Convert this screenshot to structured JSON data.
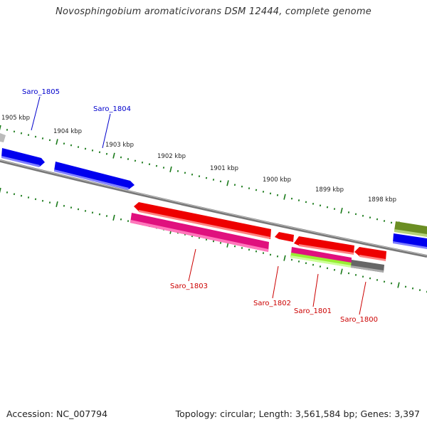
{
  "title": "Novosphingobium aromaticivorans DSM 12444, complete genome",
  "footer": {
    "accession": "Accession: NC_007794",
    "topology": "Topology: circular; Length: 3,561,584 bp; Genes: 3,397"
  },
  "scale_labels": [
    "1905 kbp",
    "1904 kbp",
    "1903 kbp",
    "1902 kbp",
    "1901 kbp",
    "1900 kbp",
    "1899 kbp",
    "1898 kbp"
  ],
  "genes": [
    {
      "name": "Saro_1805",
      "strand": "+",
      "color": "#0000cc"
    },
    {
      "name": "Saro_1804",
      "strand": "+",
      "color": "#0000cc"
    },
    {
      "name": "Saro_1803",
      "strand": "-",
      "color": "#cc0000"
    },
    {
      "name": "Saro_1802",
      "strand": "-",
      "color": "#cc0000"
    },
    {
      "name": "Saro_1801",
      "strand": "-",
      "color": "#cc0000"
    },
    {
      "name": "Saro_1800",
      "strand": "-",
      "color": "#cc0000"
    }
  ],
  "colors": {
    "plus_strand": "#0000ff",
    "minus_strand": "#ff0000",
    "cds": "#e8007a",
    "rna": "#99ff33",
    "other": "#666666",
    "backbone": "#808080",
    "ticks": "#1a7a1a",
    "olive": "#6b8e23"
  }
}
